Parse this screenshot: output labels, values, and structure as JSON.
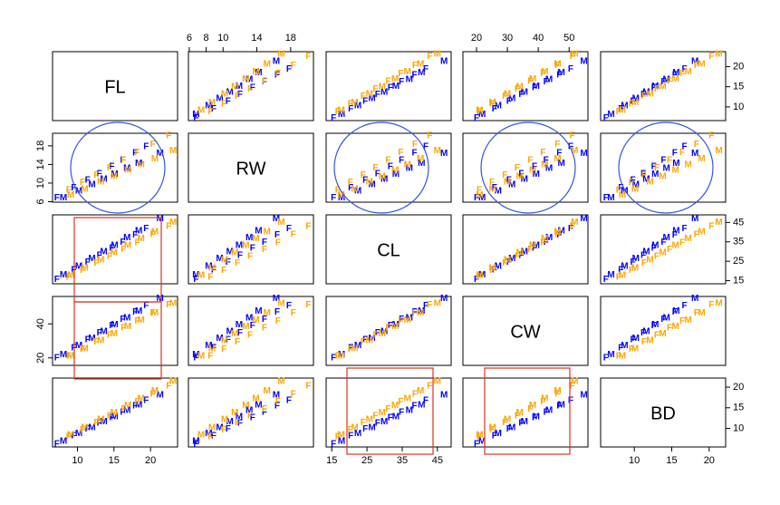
{
  "chart_data": {
    "type": "scatter-matrix",
    "variables": [
      "FL",
      "RW",
      "CL",
      "CW",
      "BD"
    ],
    "limits": [
      [
        6.6,
        23.7
      ],
      [
        5.9,
        20.7
      ],
      [
        13.4,
        48.9
      ],
      [
        15.6,
        56.1
      ],
      [
        5.5,
        22.2
      ]
    ],
    "xticks": [
      [
        10,
        15,
        20
      ],
      [
        6,
        8,
        10,
        14,
        18
      ],
      [
        15,
        25,
        35,
        45
      ],
      [
        20,
        30,
        40,
        50
      ],
      [
        10,
        15,
        20
      ]
    ],
    "yticks": [
      [
        10,
        15,
        20
      ],
      [
        6,
        10,
        14,
        18
      ],
      [
        15,
        25,
        35,
        45
      ],
      [
        20,
        40
      ],
      [
        10,
        15,
        20
      ]
    ],
    "series": [
      {
        "marker": "M",
        "color": "#0000ff",
        "values": [
          [
            8.1,
            6.8,
            17.8,
            21.8,
            6.9
          ],
          [
            10.2,
            8.3,
            22.4,
            27.0,
            8.7
          ],
          [
            12.0,
            9.6,
            26.4,
            31.5,
            10.2
          ],
          [
            13.6,
            10.8,
            29.9,
            35.5,
            11.6
          ],
          [
            15.1,
            11.9,
            33.2,
            39.3,
            12.8
          ],
          [
            16.8,
            13.1,
            37.0,
            43.5,
            14.3
          ],
          [
            18.4,
            14.2,
            40.5,
            47.5,
            15.6
          ],
          [
            21.3,
            16.3,
            46.9,
            54.8,
            18.1
          ]
        ]
      },
      {
        "marker": "F",
        "color": "#0000ff",
        "values": [
          [
            7.2,
            6.8,
            15.5,
            20.0,
            6.2
          ],
          [
            9.5,
            8.9,
            20.4,
            25.8,
            8.2
          ],
          [
            11.4,
            10.6,
            24.5,
            30.5,
            9.8
          ],
          [
            13.0,
            12.0,
            28.0,
            34.5,
            11.2
          ],
          [
            14.7,
            13.5,
            31.6,
            38.8,
            12.6
          ],
          [
            16.2,
            14.9,
            34.8,
            42.5,
            13.9
          ],
          [
            17.9,
            16.4,
            38.5,
            46.8,
            15.4
          ],
          [
            19.4,
            17.8,
            41.7,
            50.5,
            16.7
          ]
        ]
      },
      {
        "marker": "M",
        "color": "#ffa500",
        "values": [
          [
            9.1,
            7.4,
            17.7,
            21.0,
            8.4
          ],
          [
            11.0,
            8.7,
            21.5,
            25.2,
            10.1
          ],
          [
            13.2,
            10.2,
            25.7,
            30.0,
            12.1
          ],
          [
            15.0,
            11.4,
            29.3,
            34.0,
            13.8
          ],
          [
            16.9,
            12.7,
            33.0,
            38.2,
            15.5
          ],
          [
            18.7,
            13.9,
            36.5,
            42.1,
            17.2
          ],
          [
            20.6,
            15.2,
            40.2,
            46.3,
            19.0
          ],
          [
            23.1,
            16.9,
            45.0,
            51.8,
            21.3
          ]
        ]
      },
      {
        "marker": "F",
        "color": "#ffa500",
        "values": [
          [
            8.8,
            8.5,
            16.7,
            20.9,
            7.9
          ],
          [
            10.7,
            10.1,
            20.3,
            25.0,
            9.6
          ],
          [
            12.6,
            11.7,
            23.9,
            29.2,
            11.3
          ],
          [
            14.4,
            13.2,
            27.4,
            33.2,
            13.0
          ],
          [
            16.3,
            14.9,
            31.0,
            37.4,
            14.7
          ],
          [
            18.2,
            16.5,
            34.6,
            41.5,
            16.4
          ],
          [
            20.3,
            18.3,
            38.6,
            46.2,
            18.3
          ],
          [
            22.5,
            20.1,
            42.8,
            51.0,
            20.3
          ]
        ]
      }
    ]
  }
}
